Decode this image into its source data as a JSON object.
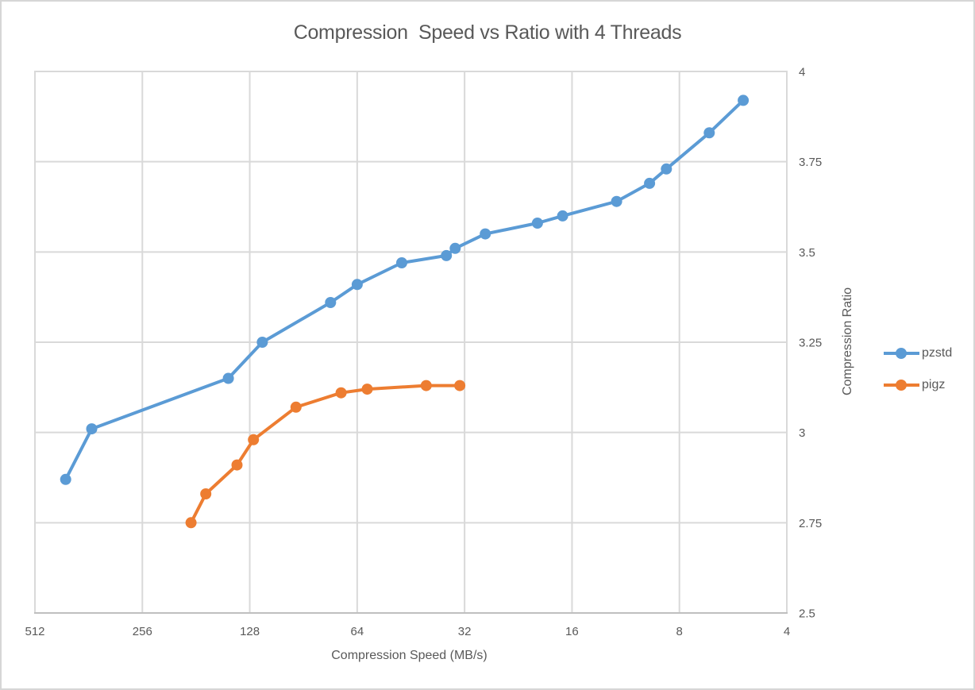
{
  "window": {
    "background": "#ffffff",
    "border_color": "#d6d6d6"
  },
  "styles": {
    "text_color": "#595959",
    "grid_color": "#d9d9d9",
    "axis_line_color": "#bfbfbf",
    "plot_background": "#ffffff"
  },
  "chart_data": {
    "type": "line",
    "title": "Compression  Speed vs Ratio with 4 Threads",
    "xlabel": "Compression Speed (MB/s)",
    "ylabel": "Compression Ratio",
    "grid": true,
    "legend_position": "right",
    "x_axis": {
      "scale": "log2",
      "reversed": true,
      "min": 4,
      "max": 512,
      "ticks": [
        512,
        256,
        128,
        64,
        32,
        16,
        8,
        4
      ],
      "tick_labels": [
        "512",
        "256",
        "128",
        "64",
        "32",
        "16",
        "8",
        "4"
      ]
    },
    "y_axis": {
      "scale": "linear",
      "side": "right",
      "min": 2.5,
      "max": 4,
      "ticks": [
        4,
        3.75,
        3.5,
        3.25,
        3,
        2.75,
        2.5
      ],
      "tick_labels": [
        "4",
        "3.75",
        "3.5",
        "3.25",
        "3",
        "2.75",
        "2.5"
      ]
    },
    "series": [
      {
        "name": "pzstd",
        "color": "#5B9BD5",
        "points": [
          [
            420,
            2.87
          ],
          [
            355,
            3.01
          ],
          [
            147,
            3.15
          ],
          [
            118,
            3.25
          ],
          [
            76,
            3.36
          ],
          [
            64,
            3.41
          ],
          [
            48,
            3.47
          ],
          [
            36,
            3.49
          ],
          [
            34,
            3.51
          ],
          [
            28,
            3.55
          ],
          [
            20,
            3.58
          ],
          [
            17,
            3.6
          ],
          [
            12,
            3.64
          ],
          [
            9.7,
            3.69
          ],
          [
            8.7,
            3.73
          ],
          [
            6.6,
            3.83
          ],
          [
            5.3,
            3.92
          ]
        ]
      },
      {
        "name": "pigz",
        "color": "#ED7D31",
        "points": [
          [
            187,
            2.75
          ],
          [
            170,
            2.83
          ],
          [
            139,
            2.91
          ],
          [
            125,
            2.98
          ],
          [
            95,
            3.07
          ],
          [
            71,
            3.11
          ],
          [
            60,
            3.12
          ],
          [
            41,
            3.13
          ],
          [
            33,
            3.13
          ]
        ]
      }
    ]
  }
}
